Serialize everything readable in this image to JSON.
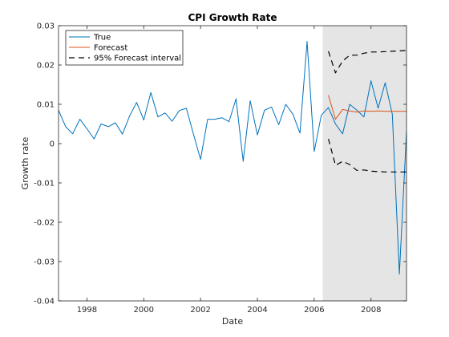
{
  "chart_data": {
    "type": "line",
    "title": "CPI Growth Rate",
    "xlabel": "Date",
    "ylabel": "Growth rate",
    "xlim": [
      1997.0,
      2009.25
    ],
    "ylim": [
      -0.04,
      0.03
    ],
    "x_ticks": [
      1998,
      2000,
      2002,
      2004,
      2006,
      2008
    ],
    "x_tick_labels": [
      "1998",
      "2000",
      "2002",
      "2004",
      "2006",
      "2008"
    ],
    "y_ticks": [
      -0.04,
      -0.03,
      -0.02,
      -0.01,
      0,
      0.01,
      0.02,
      0.03
    ],
    "y_tick_labels": [
      "-0.04",
      "-0.03",
      "-0.02",
      "-0.01",
      "0",
      "0.01",
      "0.02",
      "0.03"
    ],
    "grid": false,
    "legend_position": "top-left",
    "forecast_region": {
      "x_start": 2006.3,
      "x_end": 2009.25,
      "color": "#e5e5e5"
    },
    "series": [
      {
        "name": "True",
        "color": "#0072bd",
        "style": "solid",
        "x": [
          1997.0,
          1997.25,
          1997.5,
          1997.75,
          1998.0,
          1998.25,
          1998.5,
          1998.75,
          1999.0,
          1999.25,
          1999.5,
          1999.75,
          2000.0,
          2000.25,
          2000.5,
          2000.75,
          2001.0,
          2001.25,
          2001.5,
          2001.75,
          2002.0,
          2002.25,
          2002.5,
          2002.75,
          2003.0,
          2003.25,
          2003.5,
          2003.75,
          2004.0,
          2004.25,
          2004.5,
          2004.75,
          2005.0,
          2005.25,
          2005.5,
          2005.75,
          2006.0,
          2006.25,
          2006.5,
          2006.75,
          2007.0,
          2007.25,
          2007.5,
          2007.75,
          2008.0,
          2008.25,
          2008.5,
          2008.75,
          2009.0,
          2009.25
        ],
        "y": [
          0.0085,
          0.0043,
          0.0025,
          0.0062,
          0.0038,
          0.0012,
          0.005,
          0.0043,
          0.0053,
          0.0024,
          0.007,
          0.0105,
          0.006,
          0.013,
          0.0068,
          0.0078,
          0.0057,
          0.0084,
          0.009,
          0.0024,
          -0.004,
          0.0062,
          0.0062,
          0.0066,
          0.0056,
          0.0114,
          -0.0045,
          0.0109,
          0.0022,
          0.0085,
          0.0093,
          0.0048,
          0.01,
          0.0075,
          0.0027,
          0.026,
          -0.002,
          0.0072,
          0.0092,
          0.005,
          0.0025,
          0.01,
          0.0085,
          0.0068,
          0.016,
          0.009,
          0.0155,
          0.0075,
          -0.0332,
          0.003
        ]
      },
      {
        "name": "Forecast",
        "color": "#d95319",
        "style": "solid",
        "x": [
          2006.5,
          2006.75,
          2007.0,
          2007.25,
          2007.5,
          2007.75,
          2008.0,
          2008.25,
          2008.5,
          2008.75,
          2009.0,
          2009.25
        ],
        "y": [
          0.0123,
          0.0062,
          0.0087,
          0.0083,
          0.008,
          0.0083,
          0.0082,
          0.0083,
          0.0082,
          0.0082,
          0.0082,
          0.0082
        ]
      },
      {
        "name": "95% Forecast interval",
        "color": "#000000",
        "style": "dashed",
        "x": [
          2006.5,
          2006.75,
          2007.0,
          2007.25,
          2007.5,
          2007.75,
          2008.0,
          2008.25,
          2008.5,
          2008.75,
          2009.0,
          2009.25
        ],
        "y": [
          0.0235,
          0.018,
          0.021,
          0.0225,
          0.0225,
          0.023,
          0.0233,
          0.0233,
          0.0234,
          0.0235,
          0.0236,
          0.0237
        ]
      },
      {
        "name": "",
        "color": "#000000",
        "style": "dashed",
        "x": [
          2006.5,
          2006.75,
          2007.0,
          2007.25,
          2007.5,
          2007.75,
          2008.0,
          2008.25,
          2008.5,
          2008.75,
          2009.0,
          2009.25
        ],
        "y": [
          0.0012,
          -0.0055,
          -0.0045,
          -0.0053,
          -0.0068,
          -0.0067,
          -0.007,
          -0.0071,
          -0.0072,
          -0.0072,
          -0.0072,
          -0.0072
        ]
      }
    ]
  }
}
